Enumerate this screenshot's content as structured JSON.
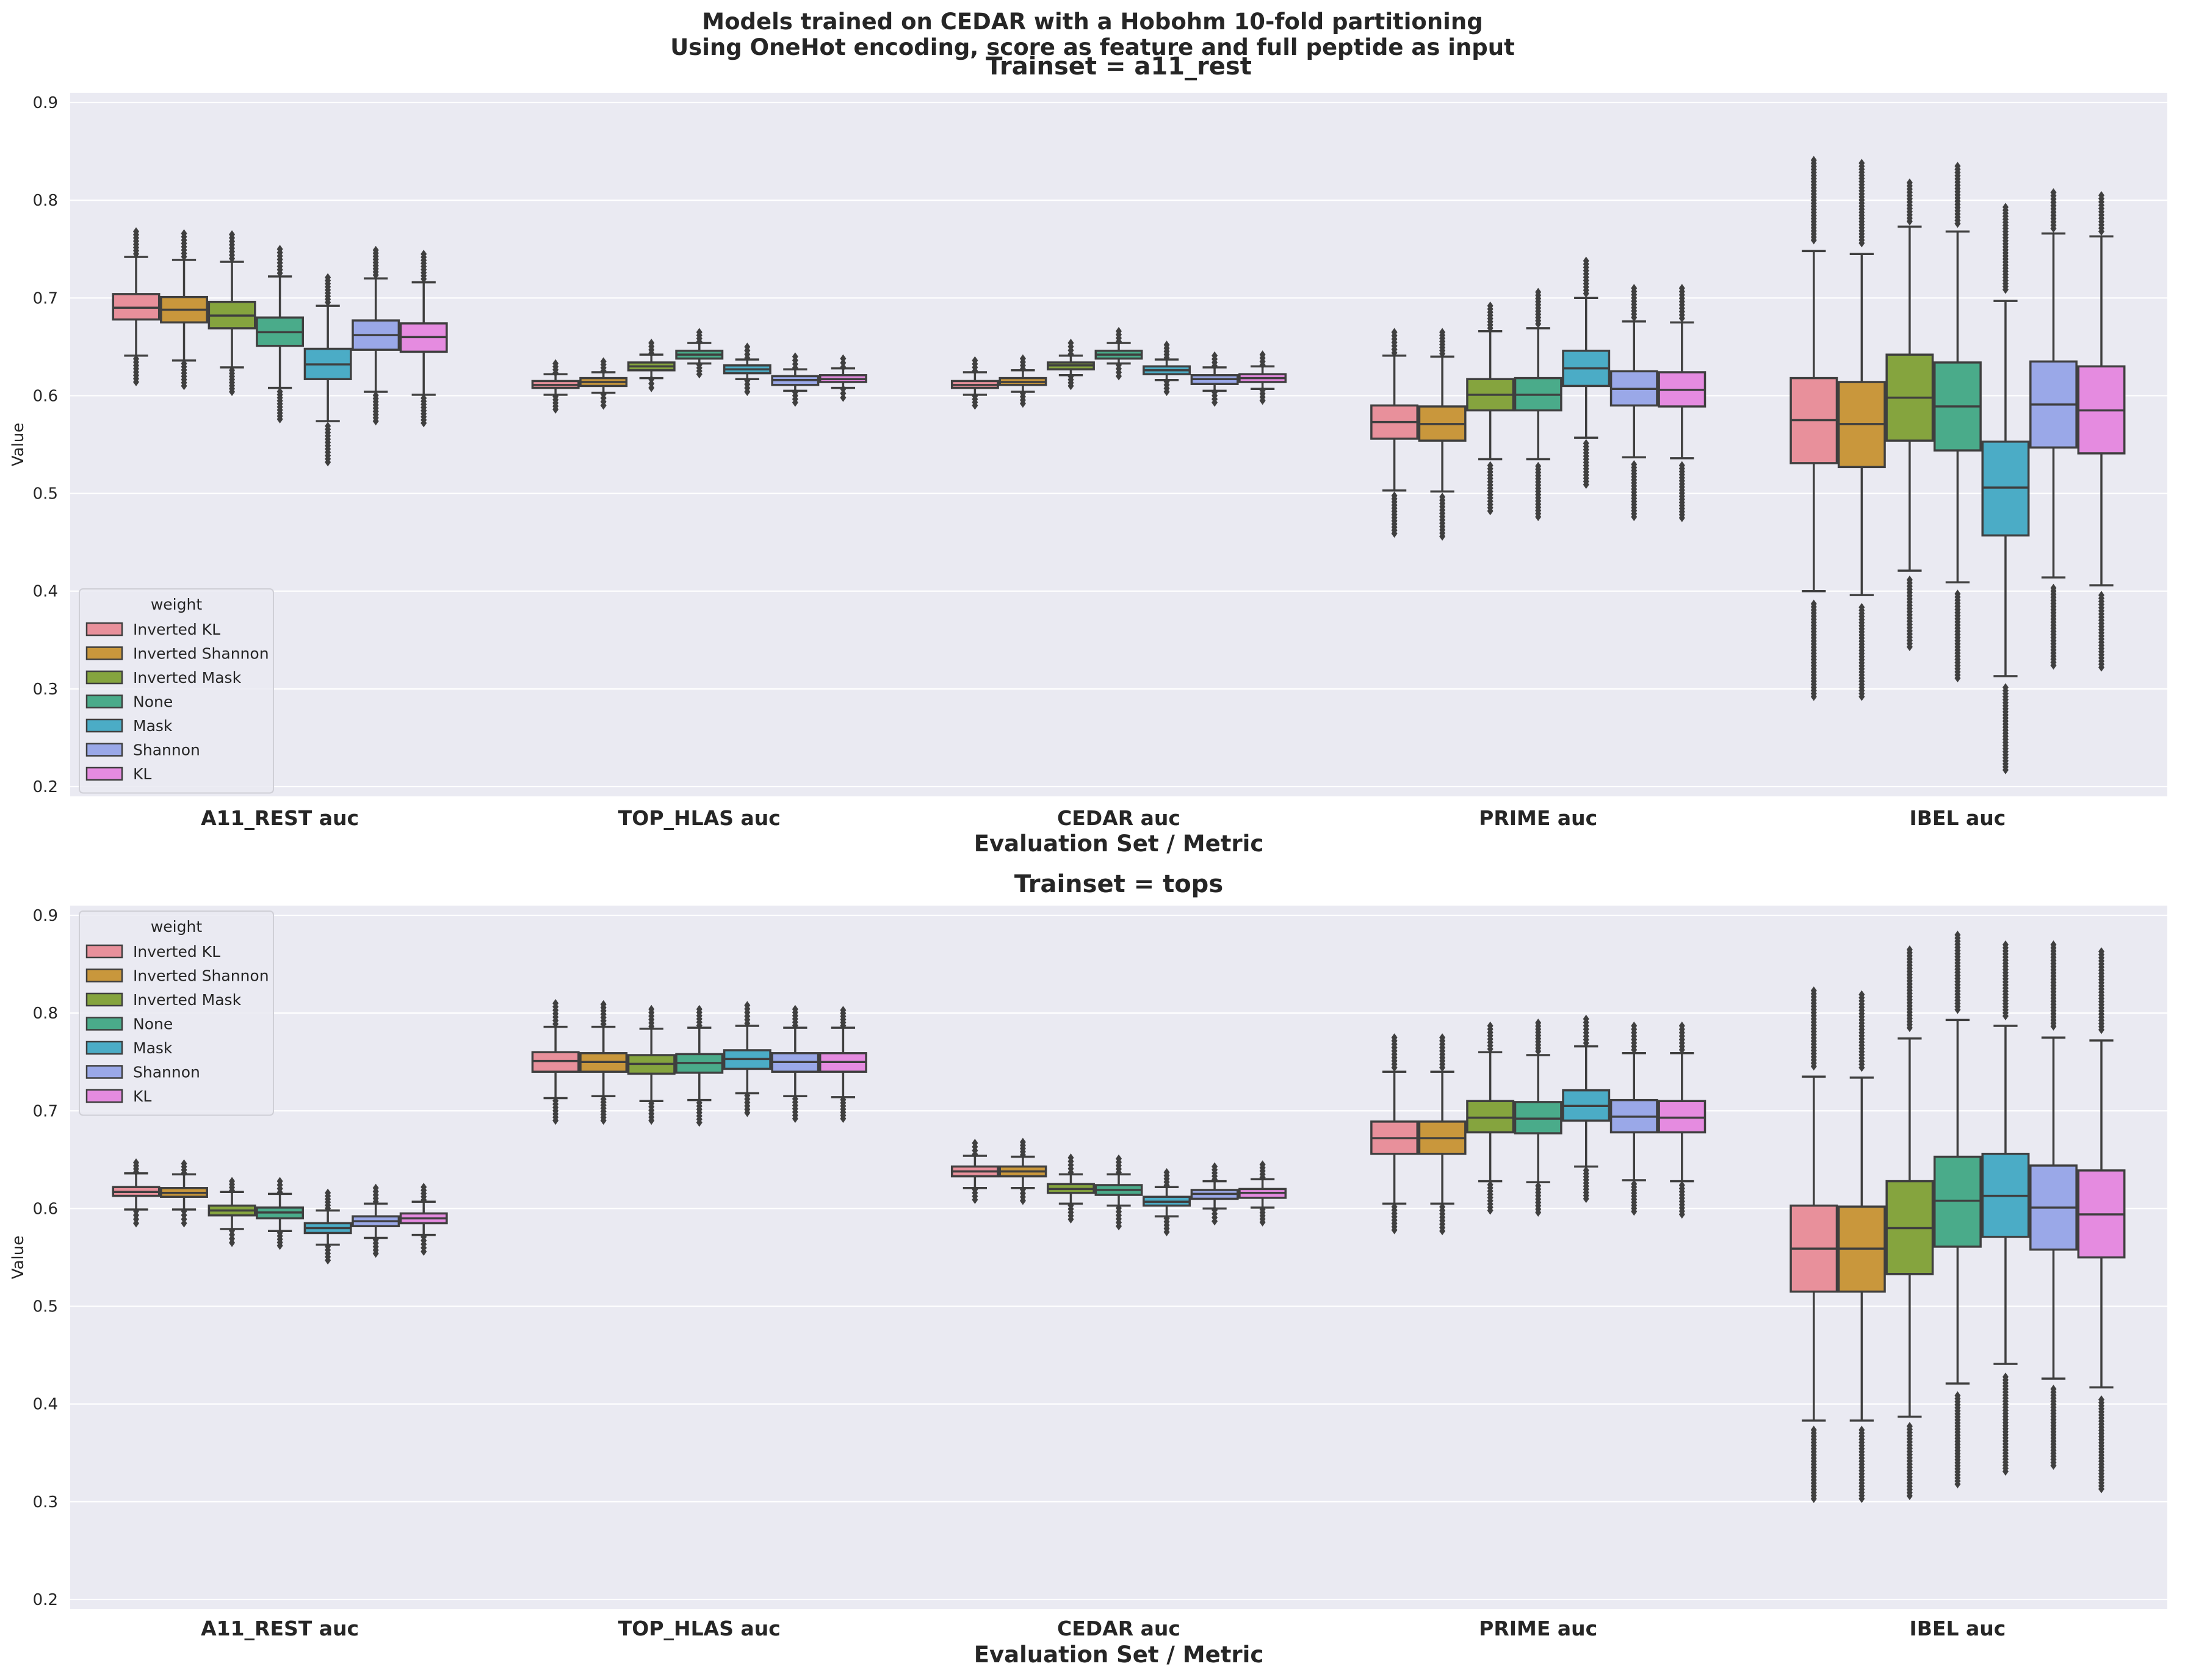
{
  "figure_title": [
    "Models trained on CEDAR with a Hobohm 10-fold partitioning",
    "Using OneHot encoding, score as feature and full peptide as input"
  ],
  "colors": {
    "Inverted KL": "#e8909b",
    "Inverted Shannon": "#c9973c",
    "Inverted Mask": "#85a43e",
    "None": "#4aab8a",
    "Mask": "#4bacc6",
    "Shannon": "#9aa8e8",
    "KL": "#e58be0",
    "background": "#eaeaf2",
    "grid": "#ffffff",
    "stroke": "#3f3f3f"
  },
  "chart_data": [
    {
      "type": "box",
      "title": "Trainset = a11_rest",
      "xlabel": "Evaluation Set / Metric",
      "ylabel": "Value",
      "ylim": [
        0.19,
        0.91
      ],
      "yticks": [
        "0.2",
        "0.3",
        "0.4",
        "0.5",
        "0.6",
        "0.7",
        "0.8",
        "0.9"
      ],
      "categories": [
        "A11_REST auc",
        "TOP_HLAS auc",
        "CEDAR auc",
        "PRIME auc",
        "IBEL auc"
      ],
      "legend": {
        "title": "weight",
        "placement": "lower-left",
        "entries": [
          "Inverted KL",
          "Inverted Shannon",
          "Inverted Mask",
          "None",
          "Mask",
          "Shannon",
          "KL"
        ]
      },
      "grid": true,
      "series": [
        {
          "name": "Inverted KL",
          "boxes": [
            {
              "wmin": 0.641,
              "q1": 0.678,
              "med": 0.69,
              "q3": 0.704,
              "wmax": 0.742,
              "fmin": 0.614,
              "fmax": 0.768
            },
            {
              "wmin": 0.601,
              "q1": 0.608,
              "med": 0.611,
              "q3": 0.615,
              "wmax": 0.622,
              "fmin": 0.586,
              "fmax": 0.633
            },
            {
              "wmin": 0.601,
              "q1": 0.608,
              "med": 0.611,
              "q3": 0.615,
              "wmax": 0.624,
              "fmin": 0.59,
              "fmax": 0.636
            },
            {
              "wmin": 0.503,
              "q1": 0.556,
              "med": 0.573,
              "q3": 0.59,
              "wmax": 0.641,
              "fmin": 0.459,
              "fmax": 0.665
            },
            {
              "wmin": 0.4,
              "q1": 0.531,
              "med": 0.575,
              "q3": 0.618,
              "wmax": 0.748,
              "fmin": 0.292,
              "fmax": 0.841
            }
          ]
        },
        {
          "name": "Inverted Shannon",
          "boxes": [
            {
              "wmin": 0.636,
              "q1": 0.675,
              "med": 0.688,
              "q3": 0.701,
              "wmax": 0.739,
              "fmin": 0.61,
              "fmax": 0.766
            },
            {
              "wmin": 0.603,
              "q1": 0.61,
              "med": 0.614,
              "q3": 0.618,
              "wmax": 0.624,
              "fmin": 0.59,
              "fmax": 0.635
            },
            {
              "wmin": 0.604,
              "q1": 0.611,
              "med": 0.614,
              "q3": 0.618,
              "wmax": 0.626,
              "fmin": 0.592,
              "fmax": 0.638
            },
            {
              "wmin": 0.502,
              "q1": 0.554,
              "med": 0.571,
              "q3": 0.589,
              "wmax": 0.64,
              "fmin": 0.456,
              "fmax": 0.665
            },
            {
              "wmin": 0.396,
              "q1": 0.527,
              "med": 0.571,
              "q3": 0.614,
              "wmax": 0.745,
              "fmin": 0.292,
              "fmax": 0.838
            }
          ]
        },
        {
          "name": "Inverted Mask",
          "boxes": [
            {
              "wmin": 0.629,
              "q1": 0.669,
              "med": 0.682,
              "q3": 0.696,
              "wmax": 0.737,
              "fmin": 0.604,
              "fmax": 0.765
            },
            {
              "wmin": 0.618,
              "q1": 0.626,
              "med": 0.63,
              "q3": 0.634,
              "wmax": 0.642,
              "fmin": 0.608,
              "fmax": 0.654
            },
            {
              "wmin": 0.621,
              "q1": 0.627,
              "med": 0.631,
              "q3": 0.634,
              "wmax": 0.641,
              "fmin": 0.61,
              "fmax": 0.654
            },
            {
              "wmin": 0.535,
              "q1": 0.585,
              "med": 0.601,
              "q3": 0.617,
              "wmax": 0.666,
              "fmin": 0.482,
              "fmax": 0.692
            },
            {
              "wmin": 0.421,
              "q1": 0.554,
              "med": 0.598,
              "q3": 0.642,
              "wmax": 0.773,
              "fmin": 0.343,
              "fmax": 0.818
            }
          ]
        },
        {
          "name": "None",
          "boxes": [
            {
              "wmin": 0.608,
              "q1": 0.651,
              "med": 0.665,
              "q3": 0.68,
              "wmax": 0.722,
              "fmin": 0.576,
              "fmax": 0.75
            },
            {
              "wmin": 0.633,
              "q1": 0.638,
              "med": 0.642,
              "q3": 0.646,
              "wmax": 0.654,
              "fmin": 0.622,
              "fmax": 0.665
            },
            {
              "wmin": 0.633,
              "q1": 0.638,
              "med": 0.642,
              "q3": 0.646,
              "wmax": 0.654,
              "fmin": 0.62,
              "fmax": 0.666
            },
            {
              "wmin": 0.535,
              "q1": 0.585,
              "med": 0.601,
              "q3": 0.618,
              "wmax": 0.669,
              "fmin": 0.476,
              "fmax": 0.706
            },
            {
              "wmin": 0.409,
              "q1": 0.544,
              "med": 0.589,
              "q3": 0.634,
              "wmax": 0.768,
              "fmin": 0.311,
              "fmax": 0.835
            }
          ]
        },
        {
          "name": "Mask",
          "boxes": [
            {
              "wmin": 0.574,
              "q1": 0.617,
              "med": 0.632,
              "q3": 0.648,
              "wmax": 0.692,
              "fmin": 0.532,
              "fmax": 0.721
            },
            {
              "wmin": 0.617,
              "q1": 0.623,
              "med": 0.627,
              "q3": 0.631,
              "wmax": 0.637,
              "fmin": 0.604,
              "fmax": 0.65
            },
            {
              "wmin": 0.616,
              "q1": 0.622,
              "med": 0.626,
              "q3": 0.63,
              "wmax": 0.637,
              "fmin": 0.604,
              "fmax": 0.652
            },
            {
              "wmin": 0.557,
              "q1": 0.61,
              "med": 0.628,
              "q3": 0.646,
              "wmax": 0.7,
              "fmin": 0.509,
              "fmax": 0.738
            },
            {
              "wmin": 0.313,
              "q1": 0.457,
              "med": 0.506,
              "q3": 0.553,
              "wmax": 0.697,
              "fmin": 0.217,
              "fmax": 0.793
            }
          ]
        },
        {
          "name": "Shannon",
          "boxes": [
            {
              "wmin": 0.604,
              "q1": 0.647,
              "med": 0.662,
              "q3": 0.677,
              "wmax": 0.72,
              "fmin": 0.574,
              "fmax": 0.749
            },
            {
              "wmin": 0.605,
              "q1": 0.611,
              "med": 0.616,
              "q3": 0.62,
              "wmax": 0.627,
              "fmin": 0.593,
              "fmax": 0.64
            },
            {
              "wmin": 0.605,
              "q1": 0.612,
              "med": 0.617,
              "q3": 0.621,
              "wmax": 0.629,
              "fmin": 0.593,
              "fmax": 0.641
            },
            {
              "wmin": 0.537,
              "q1": 0.59,
              "med": 0.607,
              "q3": 0.625,
              "wmax": 0.676,
              "fmin": 0.476,
              "fmax": 0.71
            },
            {
              "wmin": 0.414,
              "q1": 0.547,
              "med": 0.591,
              "q3": 0.635,
              "wmax": 0.766,
              "fmin": 0.324,
              "fmax": 0.808
            }
          ]
        },
        {
          "name": "KL",
          "boxes": [
            {
              "wmin": 0.601,
              "q1": 0.645,
              "med": 0.66,
              "q3": 0.674,
              "wmax": 0.716,
              "fmin": 0.572,
              "fmax": 0.745
            },
            {
              "wmin": 0.608,
              "q1": 0.614,
              "med": 0.617,
              "q3": 0.621,
              "wmax": 0.628,
              "fmin": 0.598,
              "fmax": 0.638
            },
            {
              "wmin": 0.607,
              "q1": 0.614,
              "med": 0.618,
              "q3": 0.622,
              "wmax": 0.63,
              "fmin": 0.595,
              "fmax": 0.642
            },
            {
              "wmin": 0.536,
              "q1": 0.589,
              "med": 0.606,
              "q3": 0.624,
              "wmax": 0.675,
              "fmin": 0.475,
              "fmax": 0.71
            },
            {
              "wmin": 0.406,
              "q1": 0.541,
              "med": 0.585,
              "q3": 0.63,
              "wmax": 0.763,
              "fmin": 0.322,
              "fmax": 0.805
            }
          ]
        }
      ]
    },
    {
      "type": "box",
      "title": "Trainset = tops",
      "xlabel": "Evaluation Set / Metric",
      "ylabel": "Value",
      "ylim": [
        0.19,
        0.91
      ],
      "yticks": [
        "0.2",
        "0.3",
        "0.4",
        "0.5",
        "0.6",
        "0.7",
        "0.8",
        "0.9"
      ],
      "categories": [
        "A11_REST auc",
        "TOP_HLAS auc",
        "CEDAR auc",
        "PRIME auc",
        "IBEL auc"
      ],
      "legend": {
        "title": "weight",
        "placement": "upper-left",
        "entries": [
          "Inverted KL",
          "Inverted Shannon",
          "Inverted Mask",
          "None",
          "Mask",
          "Shannon",
          "KL"
        ]
      },
      "grid": true,
      "series": [
        {
          "name": "Inverted KL",
          "boxes": [
            {
              "wmin": 0.599,
              "q1": 0.613,
              "med": 0.617,
              "q3": 0.622,
              "wmax": 0.636,
              "fmin": 0.585,
              "fmax": 0.647
            },
            {
              "wmin": 0.713,
              "q1": 0.74,
              "med": 0.751,
              "q3": 0.76,
              "wmax": 0.786,
              "fmin": 0.69,
              "fmax": 0.81
            },
            {
              "wmin": 0.621,
              "q1": 0.633,
              "med": 0.638,
              "q3": 0.643,
              "wmax": 0.654,
              "fmin": 0.609,
              "fmax": 0.667
            },
            {
              "wmin": 0.605,
              "q1": 0.656,
              "med": 0.672,
              "q3": 0.689,
              "wmax": 0.74,
              "fmin": 0.578,
              "fmax": 0.775
            },
            {
              "wmin": 0.383,
              "q1": 0.515,
              "med": 0.559,
              "q3": 0.603,
              "wmax": 0.735,
              "fmin": 0.303,
              "fmax": 0.823
            }
          ]
        },
        {
          "name": "Inverted Shannon",
          "boxes": [
            {
              "wmin": 0.599,
              "q1": 0.612,
              "med": 0.616,
              "q3": 0.621,
              "wmax": 0.635,
              "fmin": 0.585,
              "fmax": 0.646
            },
            {
              "wmin": 0.715,
              "q1": 0.74,
              "med": 0.75,
              "q3": 0.759,
              "wmax": 0.786,
              "fmin": 0.69,
              "fmax": 0.809
            },
            {
              "wmin": 0.621,
              "q1": 0.633,
              "med": 0.638,
              "q3": 0.643,
              "wmax": 0.653,
              "fmin": 0.608,
              "fmax": 0.668
            },
            {
              "wmin": 0.605,
              "q1": 0.656,
              "med": 0.672,
              "q3": 0.689,
              "wmax": 0.74,
              "fmin": 0.577,
              "fmax": 0.775
            },
            {
              "wmin": 0.383,
              "q1": 0.515,
              "med": 0.559,
              "q3": 0.602,
              "wmax": 0.734,
              "fmin": 0.303,
              "fmax": 0.819
            }
          ]
        },
        {
          "name": "Inverted Mask",
          "boxes": [
            {
              "wmin": 0.579,
              "q1": 0.593,
              "med": 0.598,
              "q3": 0.603,
              "wmax": 0.617,
              "fmin": 0.565,
              "fmax": 0.628
            },
            {
              "wmin": 0.71,
              "q1": 0.738,
              "med": 0.748,
              "q3": 0.757,
              "wmax": 0.784,
              "fmin": 0.69,
              "fmax": 0.804
            },
            {
              "wmin": 0.605,
              "q1": 0.616,
              "med": 0.62,
              "q3": 0.625,
              "wmax": 0.635,
              "fmin": 0.589,
              "fmax": 0.652
            },
            {
              "wmin": 0.628,
              "q1": 0.678,
              "med": 0.693,
              "q3": 0.71,
              "wmax": 0.76,
              "fmin": 0.598,
              "fmax": 0.787
            },
            {
              "wmin": 0.387,
              "q1": 0.533,
              "med": 0.58,
              "q3": 0.628,
              "wmax": 0.774,
              "fmin": 0.306,
              "fmax": 0.865
            }
          ]
        },
        {
          "name": "None",
          "boxes": [
            {
              "wmin": 0.577,
              "q1": 0.59,
              "med": 0.596,
              "q3": 0.601,
              "wmax": 0.615,
              "fmin": 0.562,
              "fmax": 0.628
            },
            {
              "wmin": 0.711,
              "q1": 0.739,
              "med": 0.749,
              "q3": 0.758,
              "wmax": 0.785,
              "fmin": 0.688,
              "fmax": 0.804
            },
            {
              "wmin": 0.603,
              "q1": 0.614,
              "med": 0.619,
              "q3": 0.624,
              "wmax": 0.635,
              "fmin": 0.582,
              "fmax": 0.651
            },
            {
              "wmin": 0.627,
              "q1": 0.677,
              "med": 0.692,
              "q3": 0.709,
              "wmax": 0.757,
              "fmin": 0.596,
              "fmax": 0.79
            },
            {
              "wmin": 0.421,
              "q1": 0.561,
              "med": 0.608,
              "q3": 0.653,
              "wmax": 0.793,
              "fmin": 0.318,
              "fmax": 0.88
            }
          ]
        },
        {
          "name": "Mask",
          "boxes": [
            {
              "wmin": 0.563,
              "q1": 0.575,
              "med": 0.58,
              "q3": 0.585,
              "wmax": 0.598,
              "fmin": 0.547,
              "fmax": 0.616
            },
            {
              "wmin": 0.718,
              "q1": 0.743,
              "med": 0.753,
              "q3": 0.762,
              "wmax": 0.787,
              "fmin": 0.698,
              "fmax": 0.808
            },
            {
              "wmin": 0.592,
              "q1": 0.603,
              "med": 0.607,
              "q3": 0.612,
              "wmax": 0.622,
              "fmin": 0.576,
              "fmax": 0.637
            },
            {
              "wmin": 0.643,
              "q1": 0.69,
              "med": 0.705,
              "q3": 0.721,
              "wmax": 0.766,
              "fmin": 0.61,
              "fmax": 0.794
            },
            {
              "wmin": 0.441,
              "q1": 0.571,
              "med": 0.613,
              "q3": 0.656,
              "wmax": 0.787,
              "fmin": 0.331,
              "fmax": 0.87
            }
          ]
        },
        {
          "name": "Shannon",
          "boxes": [
            {
              "wmin": 0.57,
              "q1": 0.582,
              "med": 0.587,
              "q3": 0.592,
              "wmax": 0.605,
              "fmin": 0.554,
              "fmax": 0.621
            },
            {
              "wmin": 0.715,
              "q1": 0.74,
              "med": 0.75,
              "q3": 0.759,
              "wmax": 0.785,
              "fmin": 0.692,
              "fmax": 0.804
            },
            {
              "wmin": 0.6,
              "q1": 0.61,
              "med": 0.615,
              "q3": 0.619,
              "wmax": 0.628,
              "fmin": 0.587,
              "fmax": 0.643
            },
            {
              "wmin": 0.629,
              "q1": 0.678,
              "med": 0.694,
              "q3": 0.711,
              "wmax": 0.759,
              "fmin": 0.597,
              "fmax": 0.787
            },
            {
              "wmin": 0.426,
              "q1": 0.558,
              "med": 0.601,
              "q3": 0.644,
              "wmax": 0.775,
              "fmin": 0.337,
              "fmax": 0.87
            }
          ]
        },
        {
          "name": "KL",
          "boxes": [
            {
              "wmin": 0.573,
              "q1": 0.585,
              "med": 0.59,
              "q3": 0.595,
              "wmax": 0.607,
              "fmin": 0.556,
              "fmax": 0.622
            },
            {
              "wmin": 0.714,
              "q1": 0.74,
              "med": 0.75,
              "q3": 0.759,
              "wmax": 0.785,
              "fmin": 0.692,
              "fmax": 0.803
            },
            {
              "wmin": 0.601,
              "q1": 0.611,
              "med": 0.616,
              "q3": 0.62,
              "wmax": 0.63,
              "fmin": 0.586,
              "fmax": 0.645
            },
            {
              "wmin": 0.628,
              "q1": 0.678,
              "med": 0.693,
              "q3": 0.71,
              "wmax": 0.759,
              "fmin": 0.594,
              "fmax": 0.787
            },
            {
              "wmin": 0.417,
              "q1": 0.55,
              "med": 0.594,
              "q3": 0.639,
              "wmax": 0.772,
              "fmin": 0.313,
              "fmax": 0.863
            }
          ]
        }
      ]
    }
  ]
}
